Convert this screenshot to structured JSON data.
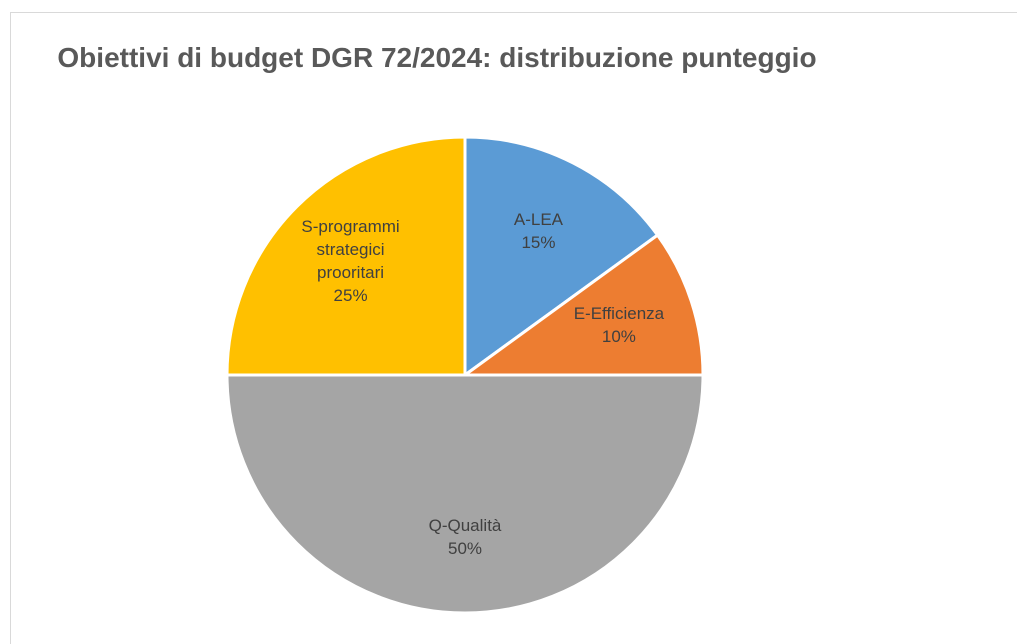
{
  "chart_data": {
    "type": "pie",
    "title": "Obiettivi di budget DGR 72/2024: distribuzione punteggio",
    "categories": [
      "A-LEA",
      "E-Efficienza",
      "Q-Qualità",
      "S-programmi strategici prooritari"
    ],
    "values": [
      15,
      10,
      50,
      25
    ],
    "value_labels": [
      "15%",
      "10%",
      "50%",
      "25%"
    ],
    "colors": [
      "#5b9bd5",
      "#ed7d31",
      "#a5a5a5",
      "#ffc000"
    ]
  }
}
